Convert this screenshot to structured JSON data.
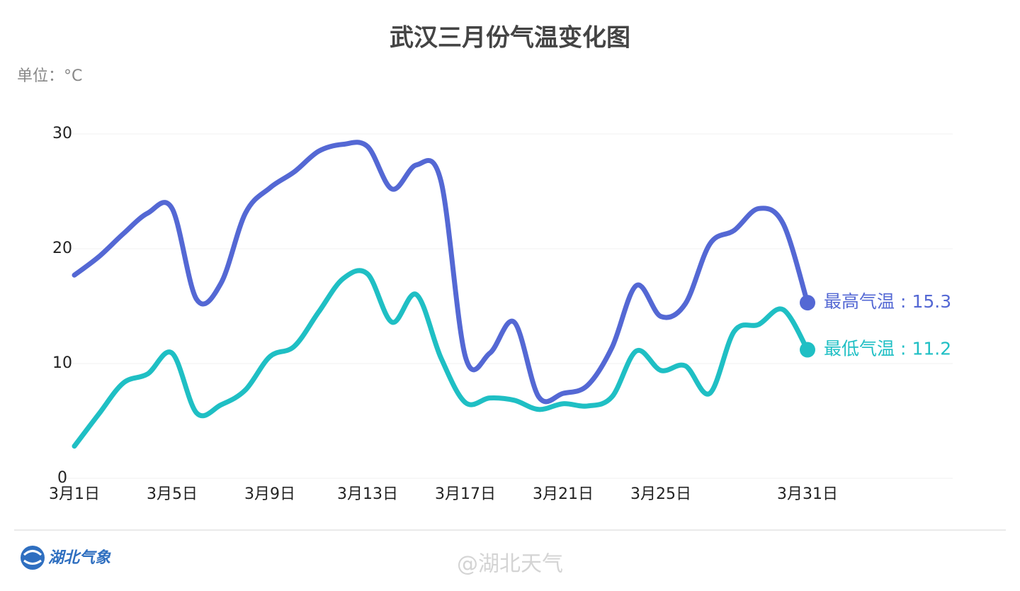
{
  "chart_data": {
    "type": "line",
    "title": "武汉三月份气温变化图",
    "unit_label": "单位：°C",
    "categories": [
      "3月1日",
      null,
      null,
      null,
      "3月5日",
      null,
      null,
      null,
      "3月9日",
      null,
      null,
      null,
      "3月13日",
      null,
      null,
      null,
      "3月17日",
      null,
      null,
      null,
      "3月21日",
      null,
      null,
      null,
      "3月25日",
      null,
      null,
      null,
      null,
      null,
      "3月31日"
    ],
    "series": [
      {
        "name": "最高气温",
        "color": "#5468d4",
        "values": [
          17.7,
          19.3,
          21.3,
          23.1,
          23.5,
          15.6,
          17.0,
          23.1,
          25.3,
          26.7,
          28.5,
          29.1,
          28.9,
          25.2,
          27.3,
          25.9,
          10.6,
          10.9,
          13.6,
          7.1,
          7.4,
          8.1,
          11.4,
          16.8,
          14.1,
          15.2,
          20.4,
          21.6,
          23.5,
          22.2,
          15.3
        ]
      },
      {
        "name": "最低气温",
        "color": "#1fbfc4",
        "values": [
          2.8,
          5.6,
          8.3,
          9.1,
          10.9,
          5.7,
          6.4,
          7.7,
          10.6,
          11.5,
          14.5,
          17.4,
          17.8,
          13.6,
          16.0,
          10.5,
          6.6,
          7.0,
          6.8,
          6.0,
          6.5,
          6.3,
          7.1,
          11.1,
          9.4,
          9.8,
          7.4,
          12.8,
          13.4,
          14.7,
          11.2
        ]
      }
    ],
    "label_separator": ":",
    "ylim": [
      0,
      30
    ],
    "yticks": [
      0,
      10,
      20,
      30
    ],
    "grid": true
  },
  "footer": {
    "logo_text": "湖北气象",
    "watermark": "@湖北天气"
  }
}
